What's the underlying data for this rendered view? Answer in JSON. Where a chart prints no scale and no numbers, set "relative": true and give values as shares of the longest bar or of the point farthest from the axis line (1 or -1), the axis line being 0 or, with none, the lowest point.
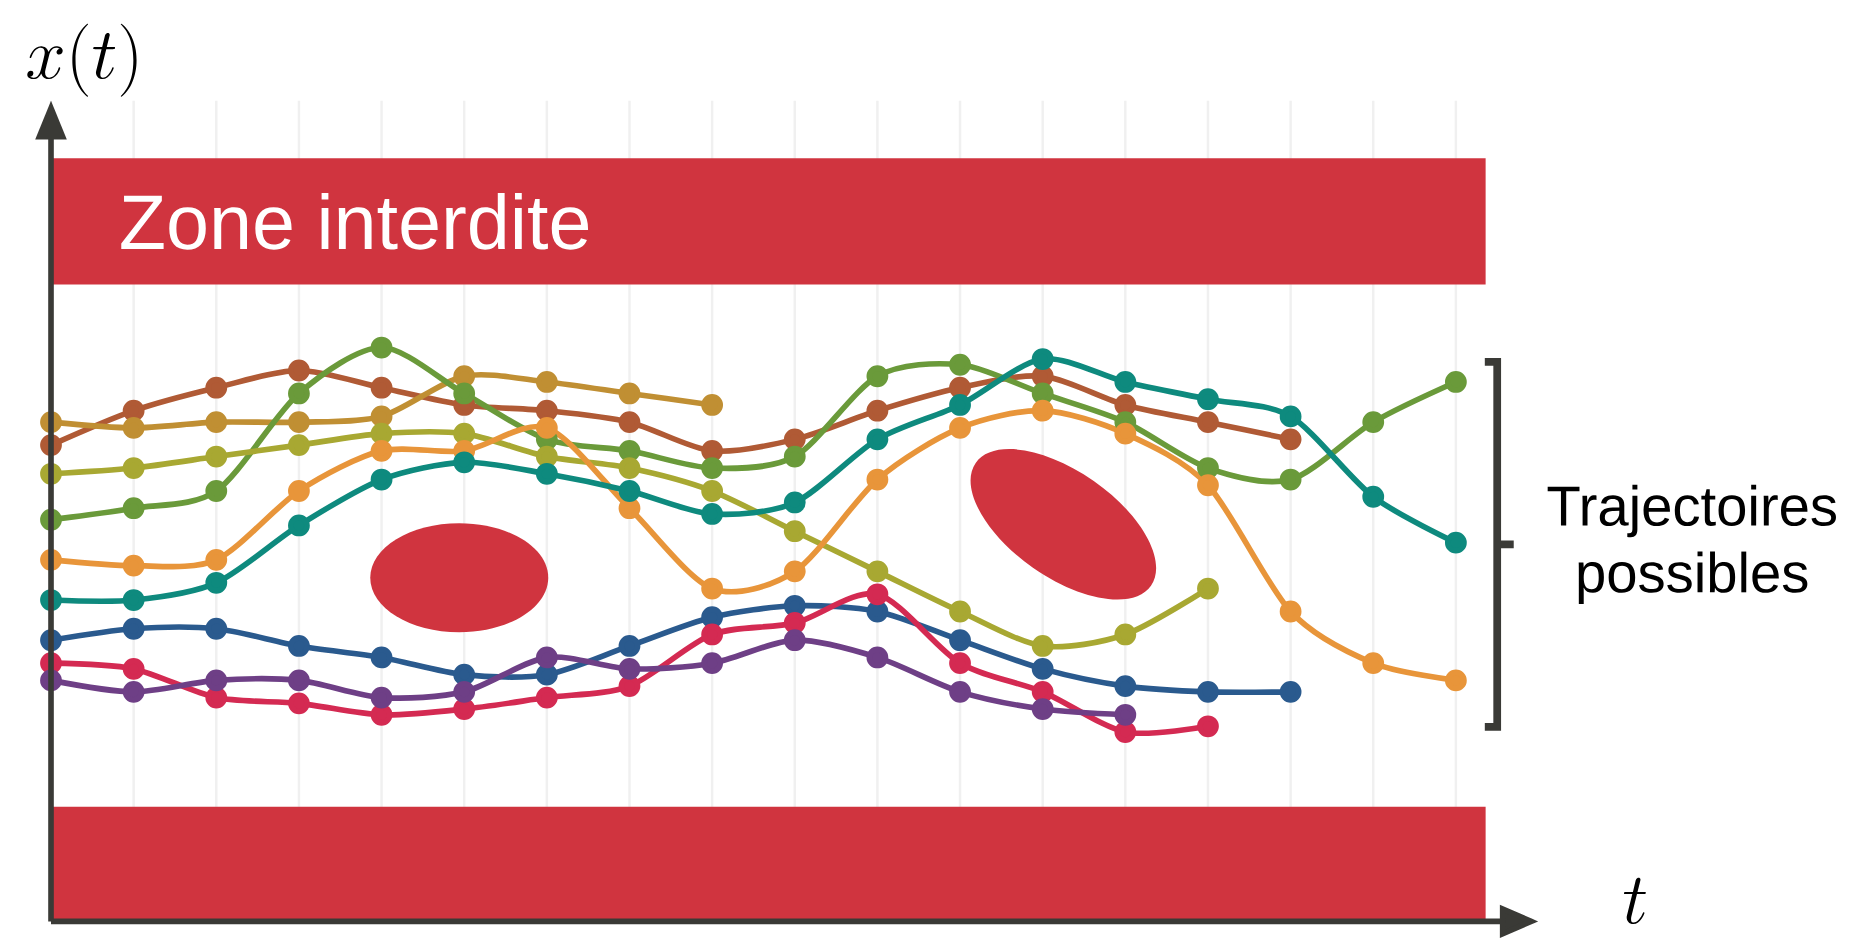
{
  "chart_data": {
    "type": "line",
    "relative": true,
    "xlabel": "t",
    "categories": [
      null,
      null,
      null,
      null,
      null,
      null,
      null,
      null,
      null,
      null,
      null,
      null,
      null,
      null,
      null,
      null,
      null,
      null
    ],
    "grid": "x",
    "marker": "circle",
    "line_style": "solid",
    "bands": [
      {
        "axis": "y",
        "from": 1.11,
        "to": 1.33,
        "label": "Zone interdite",
        "color": "#d0343f"
      },
      {
        "axis": "y",
        "from": 0,
        "to": 0.2,
        "color": "#d0343f"
      }
    ],
    "annotations": [
      "Trajectoires possibles",
      "x(t)"
    ],
    "series": [
      {
        "color": "#b05a35",
        "values": [
          0.83,
          0.89,
          0.93,
          0.96,
          0.93,
          0.9,
          0.89,
          0.87,
          0.82,
          0.84,
          0.89,
          0.93,
          0.95,
          0.9,
          0.87,
          0.84,
          null,
          null
        ]
      },
      {
        "color": "#c08f33",
        "values": [
          0.87,
          0.86,
          0.87,
          0.87,
          0.88,
          0.95,
          0.94,
          0.92,
          0.9,
          null,
          null,
          null,
          null,
          null,
          null,
          null,
          null,
          null
        ]
      },
      {
        "color": "#6a9a3a",
        "values": [
          0.7,
          0.72,
          0.75,
          0.92,
          1,
          0.92,
          0.84,
          0.82,
          0.79,
          0.81,
          0.95,
          0.97,
          0.92,
          0.87,
          0.79,
          0.77,
          0.87,
          0.94
        ]
      },
      {
        "color": "#a8a832",
        "values": [
          0.78,
          0.79,
          0.81,
          0.83,
          0.85,
          0.85,
          0.81,
          0.79,
          0.75,
          0.68,
          0.61,
          0.54,
          0.48,
          0.5,
          0.58,
          null,
          null,
          null
        ]
      },
      {
        "color": "#e8953a",
        "values": [
          0.63,
          0.62,
          0.63,
          0.75,
          0.82,
          0.82,
          0.86,
          0.72,
          0.58,
          0.61,
          0.77,
          0.86,
          0.89,
          0.85,
          0.76,
          0.54,
          0.45,
          0.42
        ]
      },
      {
        "color": "#0e8a7e",
        "values": [
          0.56,
          0.56,
          0.59,
          0.69,
          0.77,
          0.8,
          0.78,
          0.75,
          0.71,
          0.73,
          0.84,
          0.9,
          0.98,
          0.94,
          0.91,
          0.88,
          0.74,
          0.66
        ]
      },
      {
        "color": "#2a5a8e",
        "values": [
          0.49,
          0.51,
          0.51,
          0.48,
          0.46,
          0.43,
          0.43,
          0.48,
          0.53,
          0.55,
          0.54,
          0.49,
          0.44,
          0.41,
          0.4,
          0.4,
          null,
          null
        ]
      },
      {
        "color": "#d42a52",
        "values": [
          0.45,
          0.44,
          0.39,
          0.38,
          0.36,
          0.37,
          0.39,
          0.41,
          0.5,
          0.52,
          0.57,
          0.45,
          0.4,
          0.33,
          0.34,
          null,
          null,
          null
        ]
      },
      {
        "color": "#6e3f86",
        "values": [
          0.42,
          0.4,
          0.42,
          0.42,
          0.39,
          0.4,
          0.46,
          0.44,
          0.45,
          0.49,
          0.46,
          0.4,
          0.37,
          0.36,
          null,
          null,
          null,
          null
        ]
      }
    ]
  }
}
